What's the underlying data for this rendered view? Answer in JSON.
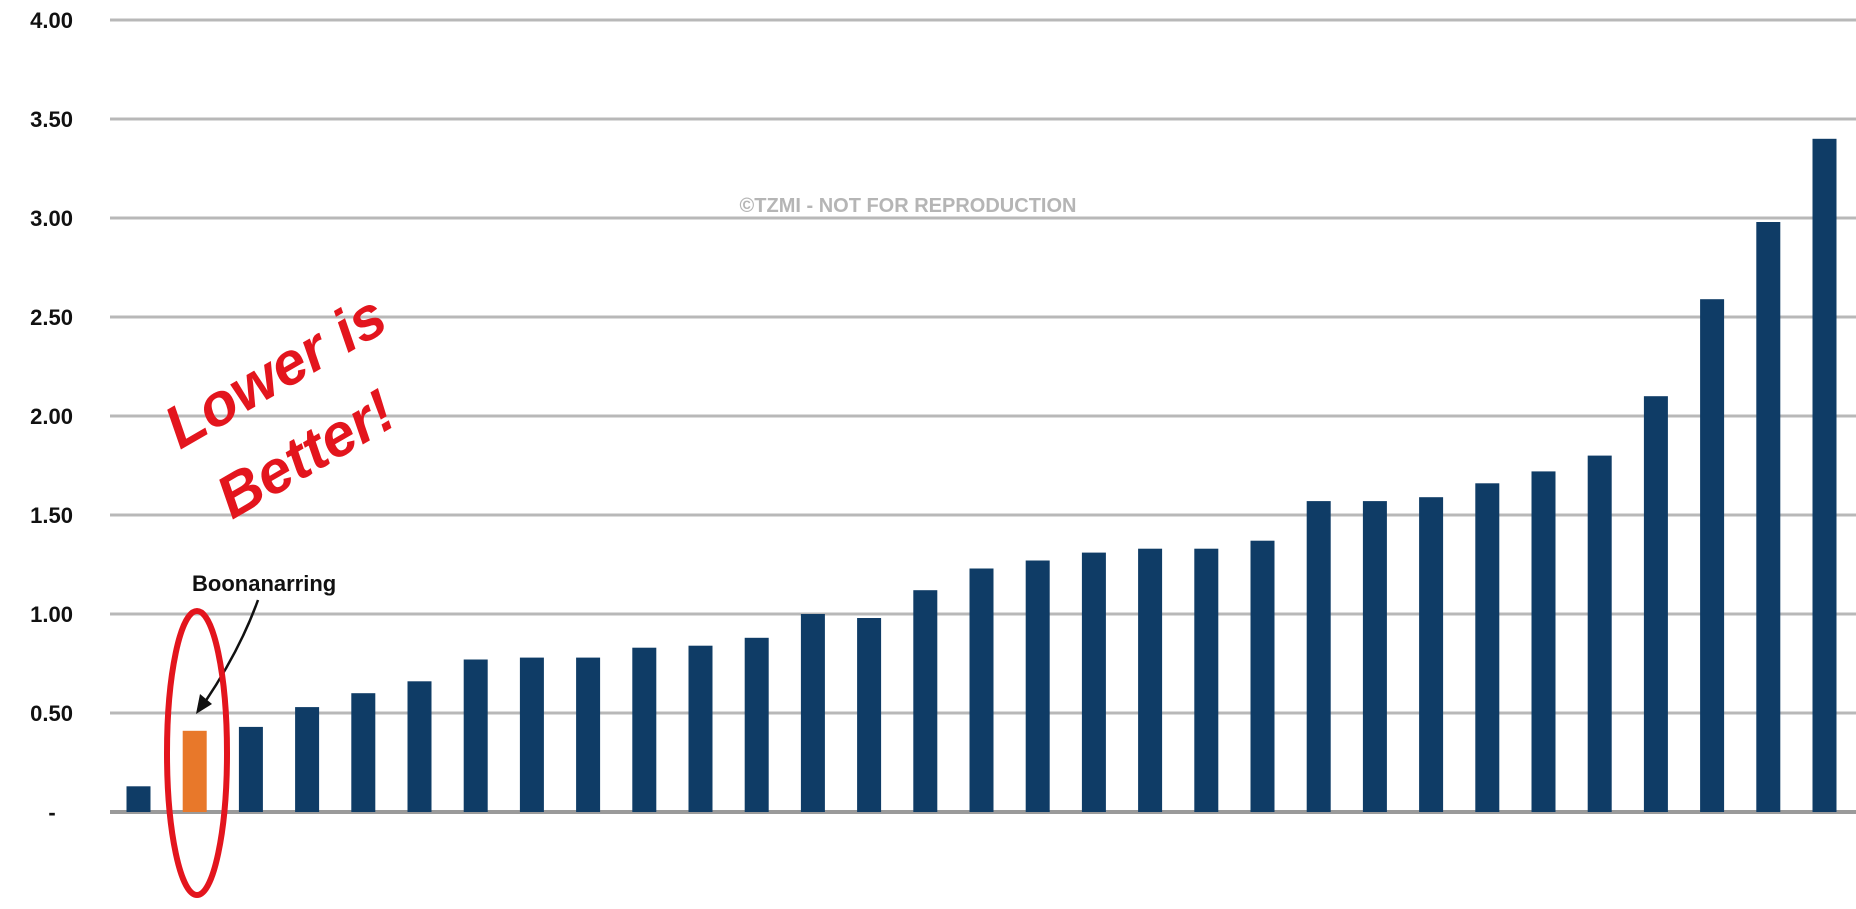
{
  "colors": {
    "bar": "#0f3c66",
    "highlight_bar": "#e8782a",
    "gridline": "#b8b8b8",
    "annotation": "#e3151d",
    "watermark": "#b5b5b5"
  },
  "watermark": "©TZMI - NOT FOR REPRODUCTION",
  "chart_data": {
    "type": "bar",
    "ylim": [
      0,
      4
    ],
    "y_ticks": [
      {
        "value": 0,
        "label": "-"
      },
      {
        "value": 0.5,
        "label": "0.50"
      },
      {
        "value": 1.0,
        "label": "1.00"
      },
      {
        "value": 1.5,
        "label": "1.50"
      },
      {
        "value": 2.0,
        "label": "2.00"
      },
      {
        "value": 2.5,
        "label": "2.50"
      },
      {
        "value": 3.0,
        "label": "3.00"
      },
      {
        "value": 3.5,
        "label": "3.50"
      },
      {
        "value": 4.0,
        "label": "4.00"
      }
    ],
    "grid": true,
    "legend": "none",
    "values": [
      0.13,
      0.41,
      0.43,
      0.53,
      0.6,
      0.66,
      0.77,
      0.78,
      0.78,
      0.83,
      0.84,
      0.88,
      1.0,
      0.98,
      1.12,
      1.23,
      1.27,
      1.31,
      1.33,
      1.33,
      1.37,
      1.57,
      1.57,
      1.59,
      1.66,
      1.72,
      1.8,
      2.1,
      2.59,
      2.98,
      3.4
    ],
    "highlight_index": 1,
    "annotations": {
      "highlight_label": "Boonanarring",
      "note_line1": "Lower is",
      "note_line2": "Better!"
    }
  }
}
